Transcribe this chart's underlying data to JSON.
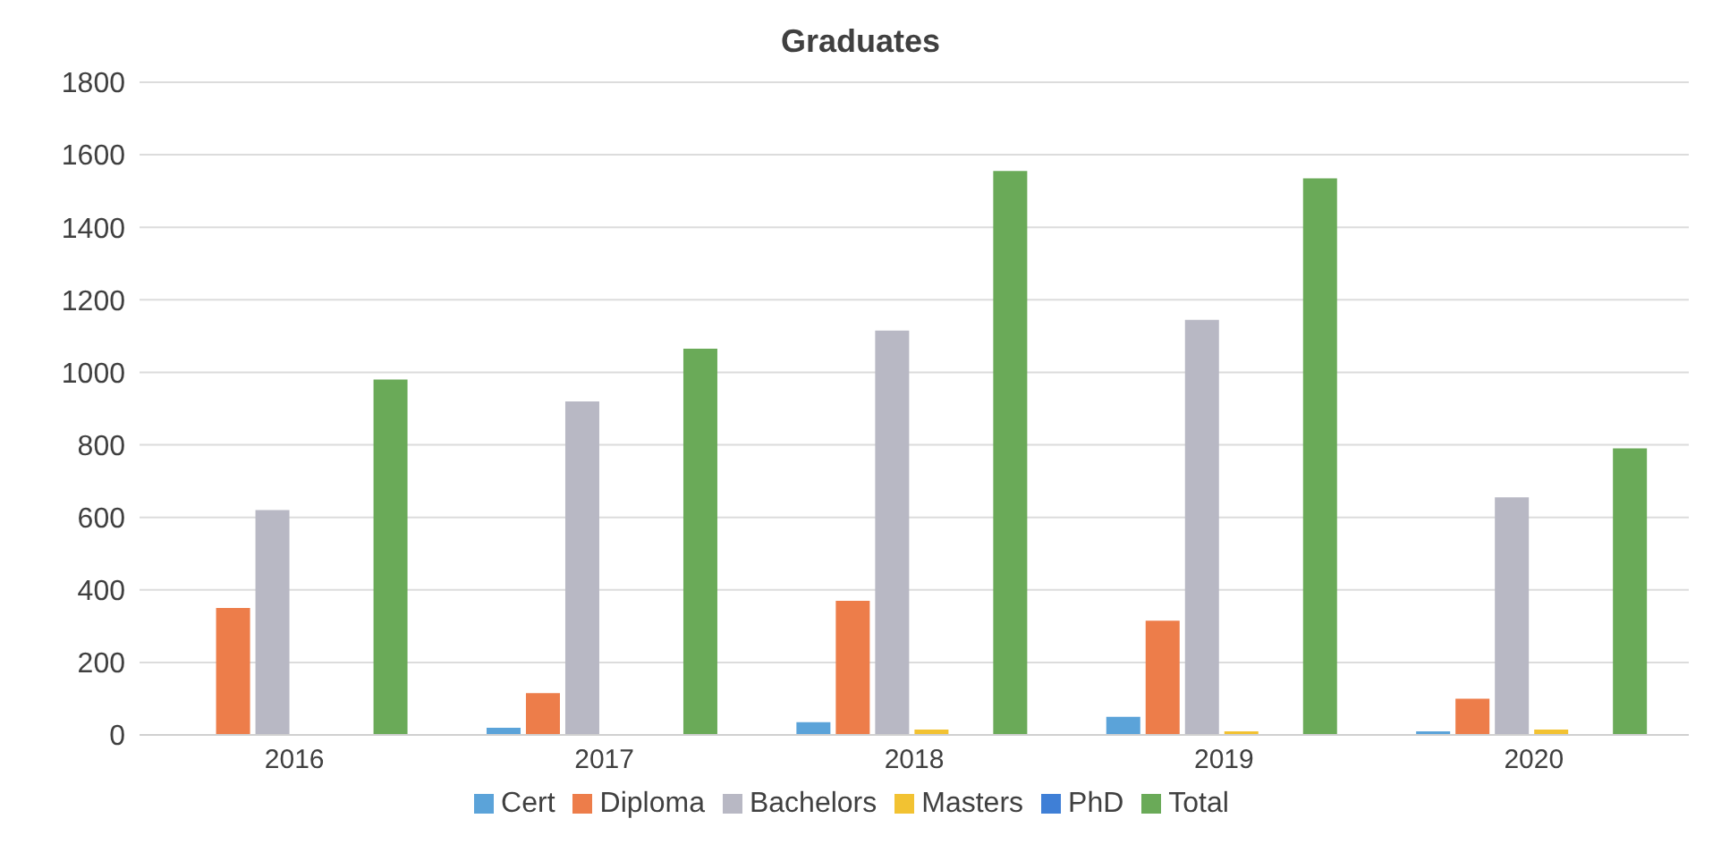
{
  "chart_data": {
    "type": "bar",
    "title": "Graduates",
    "categories": [
      "2016",
      "2017",
      "2018",
      "2019",
      "2020"
    ],
    "series": [
      {
        "name": "Cert",
        "color": "#5ba3d9",
        "values": [
          0,
          20,
          35,
          50,
          10
        ]
      },
      {
        "name": "Diploma",
        "color": "#ed7d4a",
        "values": [
          350,
          115,
          370,
          315,
          100
        ]
      },
      {
        "name": "Bachelors",
        "color": "#b8b8c4",
        "values": [
          620,
          920,
          1115,
          1145,
          655
        ]
      },
      {
        "name": "Masters",
        "color": "#f2c232",
        "values": [
          0,
          0,
          15,
          10,
          15
        ]
      },
      {
        "name": "PhD",
        "color": "#3f7fd6",
        "values": [
          0,
          0,
          0,
          0,
          0
        ]
      },
      {
        "name": "Total",
        "color": "#6aaa58",
        "values": [
          980,
          1065,
          1555,
          1535,
          790
        ]
      }
    ],
    "ylim": [
      0,
      1800
    ],
    "yticks": [
      0,
      200,
      400,
      600,
      800,
      1000,
      1200,
      1400,
      1600,
      1800
    ],
    "grid": "y",
    "legend": "bottom"
  }
}
